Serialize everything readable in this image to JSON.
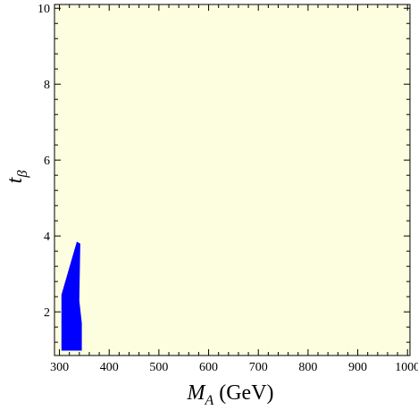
{
  "chart_data": {
    "type": "area",
    "title": "",
    "xlabel": {
      "base": "M",
      "sub": "A",
      "suffix": " (GeV)"
    },
    "ylabel": {
      "base": "t",
      "sub": "β"
    },
    "xlim": [
      290,
      1005
    ],
    "ylim": [
      0.85,
      10.1
    ],
    "xticks": [
      300,
      400,
      500,
      600,
      700,
      800,
      900,
      1000
    ],
    "yticks": [
      2,
      4,
      6,
      8,
      10
    ],
    "x_minor_step": 20,
    "y_minor_step": 0.4,
    "grid": false,
    "legend": "none",
    "background_color": "#fdfde0",
    "region_color": "#0000ff",
    "series": [
      {
        "polygon": [
          [
            304,
            0.98
          ],
          [
            304,
            2.45
          ],
          [
            335,
            3.85
          ],
          [
            342,
            3.8
          ],
          [
            340,
            2.3
          ],
          [
            345,
            1.7
          ],
          [
            345,
            0.98
          ]
        ]
      }
    ]
  }
}
